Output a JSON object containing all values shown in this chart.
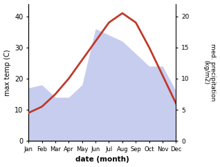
{
  "months": [
    "Jan",
    "Feb",
    "Mar",
    "Apr",
    "May",
    "Jun",
    "Jul",
    "Aug",
    "Sep",
    "Oct",
    "Nov",
    "Dec"
  ],
  "max_temp": [
    9,
    11,
    15,
    20,
    26,
    32,
    38,
    41,
    38,
    30,
    21,
    12
  ],
  "precipitation": [
    8.5,
    9,
    7,
    7,
    9,
    18,
    17,
    16,
    14,
    12,
    12,
    8
  ],
  "temp_ylim": [
    0,
    44
  ],
  "precip_ylim": [
    0,
    22
  ],
  "temp_color": "#c0392b",
  "precip_fill_color": "#b0b8e8",
  "xlabel": "date (month)",
  "ylabel_left": "max temp (C)",
  "ylabel_right": "med. precipitation\n(kg/m2)",
  "temp_yticks": [
    0,
    10,
    20,
    30,
    40
  ],
  "precip_yticks": [
    0,
    5,
    10,
    15,
    20
  ],
  "bg_color": "#ffffff"
}
